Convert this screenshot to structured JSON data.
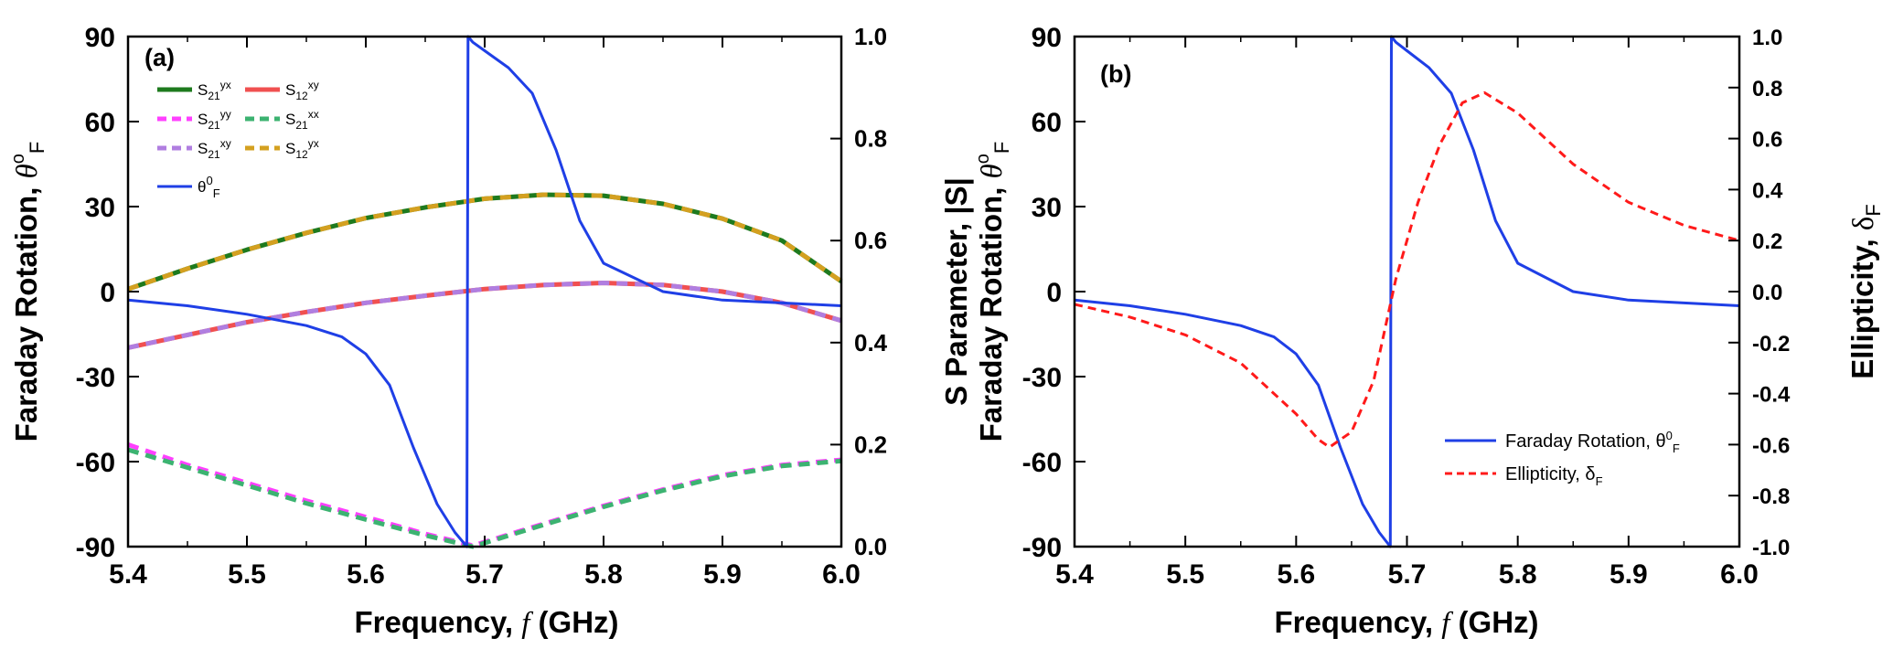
{
  "chart_data": [
    {
      "type": "line",
      "panel_label": "(a)",
      "xlabel": "Frequency, f (GHz)",
      "xlim": [
        5.4,
        6.0
      ],
      "xticks": [
        "5.4",
        "5.5",
        "5.6",
        "5.7",
        "5.8",
        "5.9",
        "6.0"
      ],
      "ylabel_left": "Faraday Rotation, θ°F",
      "ylim_left": [
        -90,
        90
      ],
      "yticks_left": [
        "-90",
        "-60",
        "-30",
        "0",
        "30",
        "60",
        "90"
      ],
      "ylabel_right": "S Parameter, |S|",
      "ylim_right": [
        0,
        1.0
      ],
      "yticks_right": [
        "0.0",
        "0.2",
        "0.4",
        "0.6",
        "0.8",
        "1.0"
      ],
      "grid": false,
      "legend_position": "top-left",
      "series": [
        {
          "name": "S21yx",
          "label_base": "S",
          "label_sub": "21",
          "label_sup": "yx",
          "axis": "right",
          "style": "solid",
          "color": "#1e7a1e",
          "x": [
            5.4,
            5.45,
            5.5,
            5.55,
            5.6,
            5.65,
            5.7,
            5.75,
            5.8,
            5.85,
            5.9,
            5.95,
            6.0
          ],
          "y": [
            0.505,
            0.545,
            0.582,
            0.615,
            0.644,
            0.665,
            0.682,
            0.69,
            0.688,
            0.672,
            0.643,
            0.6,
            0.52
          ]
        },
        {
          "name": "S12xy",
          "label_base": "S",
          "label_sub": "12",
          "label_sup": "xy",
          "axis": "right",
          "style": "solid",
          "color": "#f05050",
          "x": [
            5.4,
            5.45,
            5.5,
            5.55,
            5.6,
            5.65,
            5.7,
            5.75,
            5.8,
            5.85,
            5.9,
            5.95,
            6.0
          ],
          "y": [
            0.39,
            0.415,
            0.44,
            0.46,
            0.478,
            0.492,
            0.505,
            0.513,
            0.517,
            0.513,
            0.5,
            0.478,
            0.443
          ]
        },
        {
          "name": "S21yy",
          "label_base": "S",
          "label_sub": "21",
          "label_sup": "yy",
          "axis": "right",
          "style": "dashed",
          "color": "#ff40ff",
          "x": [
            5.4,
            5.45,
            5.5,
            5.55,
            5.6,
            5.65,
            5.69,
            5.75,
            5.8,
            5.85,
            5.9,
            5.95,
            6.0
          ],
          "y": [
            0.2,
            0.16,
            0.125,
            0.09,
            0.058,
            0.025,
            0.002,
            0.045,
            0.08,
            0.112,
            0.14,
            0.16,
            0.17
          ]
        },
        {
          "name": "S21xx",
          "label_base": "S",
          "label_sub": "21",
          "label_sup": "xx",
          "axis": "right",
          "style": "dashed",
          "color": "#3cb371",
          "x": [
            5.4,
            5.45,
            5.5,
            5.55,
            5.6,
            5.65,
            5.69,
            5.75,
            5.8,
            5.85,
            5.9,
            5.95,
            6.0
          ],
          "y": [
            0.19,
            0.155,
            0.12,
            0.085,
            0.053,
            0.022,
            0.0,
            0.043,
            0.078,
            0.11,
            0.138,
            0.158,
            0.168
          ]
        },
        {
          "name": "S21xy",
          "label_base": "S",
          "label_sub": "21",
          "label_sup": "xy",
          "axis": "right",
          "style": "dashed",
          "color": "#b07ee0",
          "x": [
            5.4,
            5.45,
            5.5,
            5.55,
            5.6,
            5.65,
            5.7,
            5.75,
            5.8,
            5.85,
            5.9,
            5.95,
            6.0
          ],
          "y": [
            0.39,
            0.415,
            0.44,
            0.46,
            0.478,
            0.492,
            0.505,
            0.513,
            0.517,
            0.513,
            0.5,
            0.478,
            0.443
          ]
        },
        {
          "name": "S12yx",
          "label_base": "S",
          "label_sub": "12",
          "label_sup": "yx",
          "axis": "right",
          "style": "dashed",
          "color": "#d4a020",
          "x": [
            5.4,
            5.45,
            5.5,
            5.55,
            5.6,
            5.65,
            5.7,
            5.75,
            5.8,
            5.85,
            5.9,
            5.95,
            6.0
          ],
          "y": [
            0.505,
            0.545,
            0.582,
            0.615,
            0.644,
            0.665,
            0.682,
            0.69,
            0.688,
            0.672,
            0.643,
            0.6,
            0.52
          ]
        },
        {
          "name": "θ0F",
          "label_base": "θ",
          "label_sup": "0",
          "label_sub": "F",
          "axis": "left",
          "style": "solid",
          "color": "#1f3fe6",
          "x": [
            5.4,
            5.45,
            5.5,
            5.55,
            5.58,
            5.6,
            5.62,
            5.64,
            5.66,
            5.675,
            5.685,
            5.686,
            5.69,
            5.7,
            5.72,
            5.74,
            5.76,
            5.78,
            5.8,
            5.85,
            5.9,
            5.95,
            6.0
          ],
          "y": [
            -3,
            -5,
            -8,
            -12,
            -16,
            -22,
            -33,
            -55,
            -75,
            -85,
            -90,
            90,
            88,
            85,
            79,
            70,
            50,
            25,
            10,
            0,
            -3,
            -4,
            -5
          ]
        }
      ]
    },
    {
      "type": "line",
      "panel_label": "(b)",
      "xlabel": "Frequency, f (GHz)",
      "xlim": [
        5.4,
        6.0
      ],
      "xticks": [
        "5.4",
        "5.5",
        "5.6",
        "5.7",
        "5.8",
        "5.9",
        "6.0"
      ],
      "ylabel_left": "Faraday Rotation, θ°F",
      "ylim_left": [
        -90,
        90
      ],
      "yticks_left": [
        "-90",
        "-60",
        "-30",
        "0",
        "30",
        "60",
        "90"
      ],
      "ylabel_right": "Ellipticity, δF",
      "ylim_right": [
        -1.0,
        1.0
      ],
      "yticks_right": [
        "-1.0",
        "-0.8",
        "-0.6",
        "-0.4",
        "-0.2",
        "0.0",
        "0.2",
        "0.4",
        "0.6",
        "0.8",
        "1.0"
      ],
      "grid": false,
      "legend_position": "bottom-right",
      "series": [
        {
          "name": "Faraday Rotation, θ0F",
          "label_text": "Faraday Rotation, ",
          "label_base": "θ",
          "label_sup": "0",
          "label_sub": "F",
          "axis": "left",
          "style": "solid",
          "color": "#1f3fe6",
          "x": [
            5.4,
            5.45,
            5.5,
            5.55,
            5.58,
            5.6,
            5.62,
            5.64,
            5.66,
            5.675,
            5.685,
            5.686,
            5.69,
            5.7,
            5.72,
            5.74,
            5.76,
            5.78,
            5.8,
            5.85,
            5.9,
            5.95,
            6.0
          ],
          "y": [
            -3,
            -5,
            -8,
            -12,
            -16,
            -22,
            -33,
            -55,
            -75,
            -85,
            -90,
            90,
            88,
            85,
            79,
            70,
            50,
            25,
            10,
            0,
            -3,
            -4,
            -5
          ]
        },
        {
          "name": "Ellipticity, δF",
          "label_text": "Ellipticity, ",
          "label_base": "δ",
          "label_sub": "F",
          "axis": "right",
          "style": "dashed",
          "color": "#ff1a1a",
          "x": [
            5.4,
            5.45,
            5.5,
            5.55,
            5.6,
            5.62,
            5.63,
            5.65,
            5.67,
            5.69,
            5.71,
            5.73,
            5.75,
            5.77,
            5.8,
            5.85,
            5.9,
            5.95,
            6.0
          ],
          "y": [
            -0.05,
            -0.1,
            -0.17,
            -0.28,
            -0.48,
            -0.58,
            -0.61,
            -0.55,
            -0.35,
            0.05,
            0.35,
            0.58,
            0.74,
            0.78,
            0.7,
            0.5,
            0.35,
            0.26,
            0.2
          ]
        }
      ]
    }
  ]
}
